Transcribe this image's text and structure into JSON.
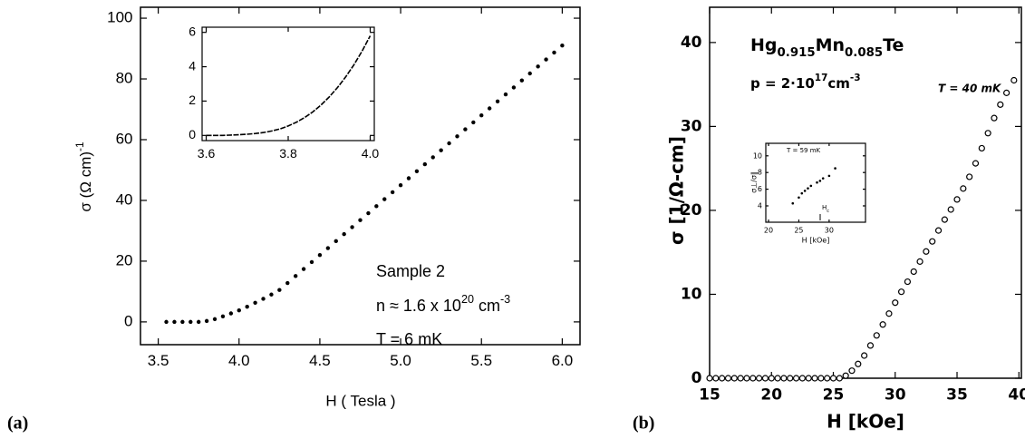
{
  "chart_data": [
    {
      "type": "scatter",
      "panel_label": "(a)",
      "marker": "filled-circle",
      "color": "#000000",
      "x_label": "H ( Tesla )",
      "y_label": {
        "parts": [
          "σ (Ω cm)",
          "-1"
        ],
        "script": "sup"
      },
      "x": [
        3.55,
        3.6,
        3.65,
        3.7,
        3.75,
        3.8,
        3.85,
        3.9,
        3.95,
        4.0,
        4.05,
        4.1,
        4.15,
        4.2,
        4.25,
        4.3,
        4.35,
        4.4,
        4.45,
        4.5,
        4.55,
        4.6,
        4.65,
        4.7,
        4.75,
        4.8,
        4.85,
        4.9,
        4.95,
        5.0,
        5.05,
        5.1,
        5.15,
        5.2,
        5.25,
        5.3,
        5.35,
        5.4,
        5.45,
        5.5,
        5.55,
        5.6,
        5.65,
        5.7,
        5.75,
        5.8,
        5.85,
        5.9,
        5.95,
        6.0
      ],
      "values": [
        0,
        0,
        0,
        0,
        0,
        0.3,
        0.9,
        1.8,
        2.8,
        3.8,
        5.0,
        6.3,
        7.6,
        9.0,
        10.5,
        12.8,
        15.1,
        17.4,
        19.7,
        22,
        24.3,
        26.6,
        28.9,
        31.2,
        33.5,
        35.8,
        38.1,
        40.4,
        42.7,
        45,
        47.3,
        49.6,
        51.9,
        54.2,
        56.5,
        58.8,
        61.1,
        63.4,
        65.7,
        68,
        70.3,
        72.6,
        74.9,
        77.2,
        79.5,
        81.8,
        84.1,
        86.4,
        88.7,
        91
      ],
      "xlim": [
        3.39,
        6.11
      ],
      "ylim": [
        -7.5,
        103.6
      ],
      "xticks": [
        3.5,
        {
          "value": 4,
          "label": "4.0"
        },
        4.5,
        {
          "value": 5,
          "label": "5.0"
        },
        5.5,
        {
          "value": 6,
          "label": "6.0"
        }
      ],
      "yticks": [
        0,
        20,
        40,
        60,
        80,
        100
      ],
      "annotations": [
        "Sample 2",
        {
          "parts": [
            "n ≈ 1.6 x 10",
            "20",
            " cm",
            "-3"
          ],
          "script": "sup"
        },
        "T = 6 mK"
      ]
    },
    {
      "type": "line",
      "color": "#000000",
      "x": [
        3.6,
        3.62,
        3.64,
        3.66,
        3.68,
        3.7,
        3.72,
        3.74,
        3.76,
        3.78,
        3.8,
        3.82,
        3.84,
        3.86,
        3.88,
        3.9,
        3.92,
        3.94,
        3.96,
        3.98,
        4.0
      ],
      "values": [
        0,
        0,
        0,
        0.02,
        0.04,
        0.07,
        0.11,
        0.17,
        0.26,
        0.38,
        0.55,
        0.77,
        1.04,
        1.37,
        1.77,
        2.24,
        2.78,
        3.4,
        4.1,
        4.9,
        5.8
      ],
      "xlim": [
        3.59,
        4.01
      ],
      "ylim": [
        -0.3,
        6.3
      ],
      "xticks": [
        3.6,
        3.8,
        {
          "value": 4,
          "label": "4.0"
        }
      ],
      "yticks": [
        0,
        2,
        4,
        6
      ]
    },
    {
      "type": "scatter",
      "panel_label": "(b)",
      "marker": "open-circle",
      "color": "#000000",
      "x_label": "H [kOe]",
      "y_label": "σ  [1/Ω-cm]",
      "x": [
        15,
        15.5,
        16,
        16.5,
        17,
        17.5,
        18,
        18.5,
        19,
        19.5,
        20,
        20.5,
        21,
        21.5,
        22,
        22.5,
        23,
        23.5,
        24,
        24.5,
        25,
        25.5,
        26,
        26.5,
        27,
        27.5,
        28,
        28.5,
        29,
        29.5,
        30,
        30.5,
        31,
        31.5,
        32,
        32.5,
        33,
        33.5,
        34,
        34.5,
        35,
        35.5,
        36,
        36.5,
        37,
        37.5,
        38,
        38.5,
        39,
        39.6
      ],
      "values": [
        0,
        0,
        0,
        0,
        0,
        0,
        0,
        0,
        0,
        0,
        0,
        0,
        0,
        0,
        0,
        0,
        0,
        0,
        0,
        0,
        0,
        0,
        0.3,
        0.9,
        1.7,
        2.7,
        3.9,
        5.1,
        6.4,
        7.7,
        9.0,
        10.3,
        11.5,
        12.7,
        13.9,
        15.1,
        16.3,
        17.6,
        18.9,
        20.1,
        21.3,
        22.6,
        24.0,
        25.6,
        27.4,
        29.2,
        31.0,
        32.6,
        34.0,
        35.5
      ],
      "xlim": [
        15,
        40.2
      ],
      "ylim": [
        0,
        44.2
      ],
      "xticks": [
        15,
        20,
        25,
        30,
        35,
        40
      ],
      "yticks": [
        0,
        10,
        20,
        30,
        40
      ],
      "annotations": [
        {
          "parts": [
            "Hg",
            "0.915",
            "Mn",
            "0.085",
            "Te"
          ],
          "script": "sub"
        },
        {
          "parts": [
            "p = 2·10",
            "17",
            "cm",
            "-3"
          ],
          "script": "sup"
        },
        "T = 40 mK"
      ]
    },
    {
      "type": "scatter",
      "marker": "filled-circle",
      "color": "#000000",
      "x_label": "H [kOe]",
      "y_label": "σ⊥/σ∥",
      "x": [
        24,
        25,
        25.5,
        26,
        26.5,
        27,
        28,
        28.5,
        29,
        30,
        31
      ],
      "values": [
        4.3,
        5.0,
        5.5,
        5.8,
        6.1,
        6.4,
        6.8,
        7.0,
        7.3,
        7.6,
        8.5
      ],
      "xlim": [
        19.55,
        36
      ],
      "ylim": [
        2.04,
        11.5
      ],
      "xticks": [
        20,
        25,
        30
      ],
      "yticks": [
        4,
        6,
        8,
        10
      ],
      "annotations": [
        "T = 59 mK",
        {
          "parts": [
            "H",
            "c"
          ],
          "script": "sub"
        }
      ]
    }
  ]
}
